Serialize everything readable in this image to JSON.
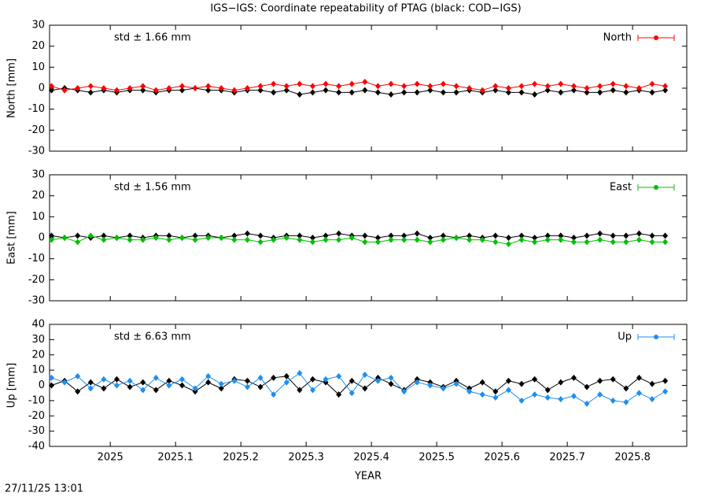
{
  "title": "IGS−IGS: Coordinate repeatability of PTAG (black: COD−IGS)",
  "footer": "27/11/25 13:01",
  "chart_data": [
    {
      "type": "line",
      "ylabel": "North [mm]",
      "annotation": "std ± 1.66 mm",
      "legend": "top-right",
      "xlim": [
        2024.907,
        2025.883
      ],
      "xticks": [
        2025,
        2025.1,
        2025.2,
        2025.3,
        2025.4,
        2025.5,
        2025.6,
        2025.7,
        2025.8
      ],
      "ylim": [
        -30,
        30
      ],
      "yticks": [
        -30,
        -20,
        -10,
        0,
        10,
        20,
        30
      ],
      "x": [
        2024.91,
        2024.93,
        2024.95,
        2024.97,
        2024.99,
        2025.01,
        2025.03,
        2025.05,
        2025.07,
        2025.09,
        2025.11,
        2025.13,
        2025.15,
        2025.17,
        2025.19,
        2025.21,
        2025.23,
        2025.25,
        2025.27,
        2025.29,
        2025.31,
        2025.33,
        2025.35,
        2025.37,
        2025.39,
        2025.41,
        2025.43,
        2025.45,
        2025.47,
        2025.49,
        2025.51,
        2025.53,
        2025.55,
        2025.57,
        2025.59,
        2025.61,
        2025.63,
        2025.65,
        2025.67,
        2025.69,
        2025.71,
        2025.73,
        2025.75,
        2025.77,
        2025.79,
        2025.81,
        2025.83,
        2025.85
      ],
      "series": [
        {
          "color": "#000000",
          "values": [
            -1,
            0,
            -1,
            -2,
            -1,
            -2,
            -1,
            -1,
            -2,
            -1,
            -1,
            0,
            -1,
            -1,
            -2,
            -1,
            -1,
            -2,
            -1,
            -3,
            -2,
            -1,
            -2,
            -2,
            -1,
            -2,
            -3,
            -2,
            -2,
            -1,
            -2,
            -2,
            -1,
            -2,
            -1,
            -2,
            -2,
            -3,
            -1,
            -2,
            -1,
            -2,
            -2,
            -1,
            -2,
            -1,
            -2,
            -1
          ]
        },
        {
          "name": "North",
          "color": "#ff0000",
          "values": [
            1,
            -1,
            0,
            1,
            0,
            -1,
            0,
            1,
            -1,
            0,
            1,
            0,
            1,
            0,
            -1,
            0,
            1,
            2,
            1,
            2,
            1,
            2,
            1,
            2,
            3,
            1,
            2,
            1,
            2,
            1,
            2,
            1,
            0,
            -1,
            1,
            0,
            1,
            2,
            1,
            2,
            1,
            0,
            1,
            2,
            1,
            0,
            2,
            1
          ]
        }
      ]
    },
    {
      "type": "line",
      "ylabel": "East [mm]",
      "annotation": "std ± 1.56 mm",
      "legend": "top-right",
      "xlim": [
        2024.907,
        2025.883
      ],
      "xticks": [
        2025,
        2025.1,
        2025.2,
        2025.3,
        2025.4,
        2025.5,
        2025.6,
        2025.7,
        2025.8
      ],
      "ylim": [
        -30,
        30
      ],
      "yticks": [
        -30,
        -20,
        -10,
        0,
        10,
        20,
        30
      ],
      "x": [
        2024.91,
        2024.93,
        2024.95,
        2024.97,
        2024.99,
        2025.01,
        2025.03,
        2025.05,
        2025.07,
        2025.09,
        2025.11,
        2025.13,
        2025.15,
        2025.17,
        2025.19,
        2025.21,
        2025.23,
        2025.25,
        2025.27,
        2025.29,
        2025.31,
        2025.33,
        2025.35,
        2025.37,
        2025.39,
        2025.41,
        2025.43,
        2025.45,
        2025.47,
        2025.49,
        2025.51,
        2025.53,
        2025.55,
        2025.57,
        2025.59,
        2025.61,
        2025.63,
        2025.65,
        2025.67,
        2025.69,
        2025.71,
        2025.73,
        2025.75,
        2025.77,
        2025.79,
        2025.81,
        2025.83,
        2025.85
      ],
      "series": [
        {
          "color": "#000000",
          "values": [
            1,
            0,
            1,
            0,
            1,
            0,
            1,
            0,
            1,
            1,
            0,
            1,
            1,
            0,
            1,
            2,
            1,
            0,
            1,
            1,
            0,
            1,
            2,
            1,
            1,
            0,
            1,
            1,
            2,
            0,
            1,
            0,
            1,
            0,
            1,
            0,
            1,
            0,
            1,
            1,
            0,
            1,
            2,
            1,
            1,
            2,
            1,
            1
          ]
        },
        {
          "name": "East",
          "color": "#00c000",
          "values": [
            -1,
            0,
            -2,
            1,
            -1,
            0,
            -1,
            -1,
            0,
            -1,
            0,
            -1,
            0,
            0,
            -1,
            -1,
            -2,
            -1,
            0,
            -1,
            -2,
            -1,
            -1,
            0,
            -2,
            -2,
            -1,
            -1,
            -1,
            -2,
            -1,
            0,
            -1,
            -1,
            -2,
            -3,
            -1,
            -2,
            -1,
            -1,
            -2,
            -2,
            -1,
            -2,
            -2,
            -1,
            -2,
            -2
          ]
        }
      ]
    },
    {
      "type": "line",
      "ylabel": "Up [mm]",
      "xlabel": "YEAR",
      "annotation": "std ± 6.63 mm",
      "legend": "top-right",
      "xlim": [
        2024.907,
        2025.883
      ],
      "xticks": [
        2025,
        2025.1,
        2025.2,
        2025.3,
        2025.4,
        2025.5,
        2025.6,
        2025.7,
        2025.8
      ],
      "ylim": [
        -40,
        40
      ],
      "yticks": [
        -40,
        -30,
        -20,
        -10,
        0,
        10,
        20,
        30,
        40
      ],
      "x": [
        2024.91,
        2024.93,
        2024.95,
        2024.97,
        2024.99,
        2025.01,
        2025.03,
        2025.05,
        2025.07,
        2025.09,
        2025.11,
        2025.13,
        2025.15,
        2025.17,
        2025.19,
        2025.21,
        2025.23,
        2025.25,
        2025.27,
        2025.29,
        2025.31,
        2025.33,
        2025.35,
        2025.37,
        2025.39,
        2025.41,
        2025.43,
        2025.45,
        2025.47,
        2025.49,
        2025.51,
        2025.53,
        2025.55,
        2025.57,
        2025.59,
        2025.61,
        2025.63,
        2025.65,
        2025.67,
        2025.69,
        2025.71,
        2025.73,
        2025.75,
        2025.77,
        2025.79,
        2025.81,
        2025.83,
        2025.85
      ],
      "series": [
        {
          "color": "#000000",
          "values": [
            0,
            3,
            -4,
            2,
            -2,
            4,
            -1,
            2,
            -3,
            3,
            0,
            -4,
            2,
            -2,
            4,
            3,
            -1,
            5,
            6,
            -3,
            4,
            2,
            -6,
            3,
            -2,
            5,
            1,
            -3,
            4,
            2,
            -1,
            3,
            -2,
            2,
            -4,
            3,
            1,
            4,
            -3,
            2,
            5,
            -1,
            3,
            4,
            -2,
            5,
            1,
            3
          ]
        },
        {
          "name": "Up",
          "color": "#1e8ff0",
          "values": [
            5,
            2,
            6,
            -2,
            4,
            0,
            3,
            -3,
            5,
            0,
            4,
            -2,
            6,
            1,
            3,
            -1,
            5,
            -6,
            2,
            8,
            -3,
            4,
            6,
            -5,
            7,
            3,
            5,
            -4,
            2,
            0,
            -2,
            1,
            -4,
            -6,
            -8,
            -3,
            -10,
            -6,
            -8,
            -9,
            -7,
            -12,
            -6,
            -10,
            -11,
            -5,
            -9,
            -4
          ]
        }
      ]
    }
  ]
}
